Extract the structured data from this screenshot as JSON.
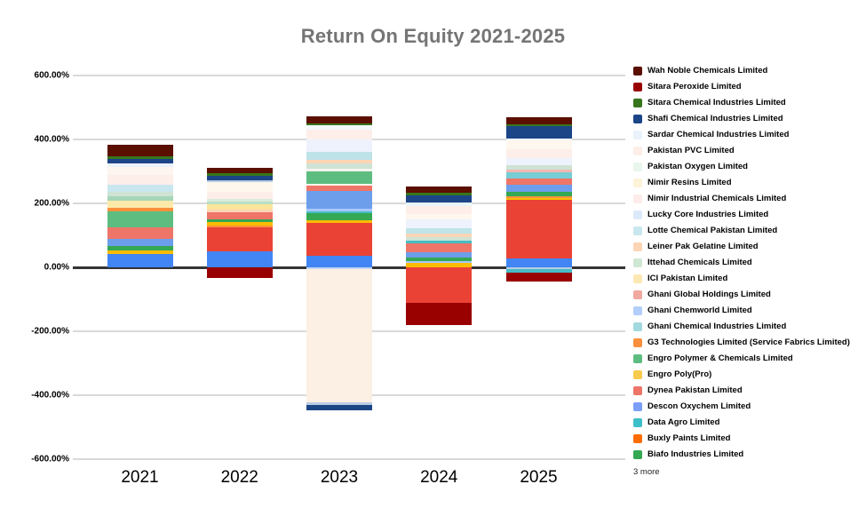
{
  "page": {
    "title": "Return On Equity 2021-2025"
  },
  "colors": {
    "background": "#ffffff",
    "title_text": "#757575",
    "gridline": "#d9d9d9",
    "zero_line": "#333333",
    "axis_text": "#000000"
  },
  "chart_data": {
    "type": "bar",
    "stacked": true,
    "title": "Return On Equity 2021-2025",
    "unit": "percent",
    "grid": true,
    "legend_position": "right",
    "categories": [
      "2021",
      "2022",
      "2023",
      "2024",
      "2025"
    ],
    "ylim": [
      -600,
      600
    ],
    "y_ticks": [
      {
        "value": 600,
        "label": "600.00%"
      },
      {
        "value": 400,
        "label": "400.00%"
      },
      {
        "value": 200,
        "label": "200.00%"
      },
      {
        "value": 0,
        "label": "0.00%"
      },
      {
        "value": -200,
        "label": "-200.00%"
      },
      {
        "value": -400,
        "label": "-400.00%"
      },
      {
        "value": -600,
        "label": "-600.00%"
      }
    ],
    "legend": [
      {
        "name": "Wah Noble Chemicals Limited",
        "color": "#5b0f00"
      },
      {
        "name": "Sitara Peroxide Limited",
        "color": "#990000"
      },
      {
        "name": "Sitara Chemical Industries Limited",
        "color": "#38761d"
      },
      {
        "name": "Shafi Chemical Industries Limited",
        "color": "#1c4587"
      },
      {
        "name": "Sardar Chemical Industries Limited",
        "color": "#eaf2fb"
      },
      {
        "name": "Pakistan PVC Limited",
        "color": "#fdeee8"
      },
      {
        "name": "Pakistan Oxygen Limited",
        "color": "#e9f6ec"
      },
      {
        "name": "Nimir Resins Limited",
        "color": "#fdf3d8"
      },
      {
        "name": "Nimir Industrial Chemicals Limited",
        "color": "#fdecea"
      },
      {
        "name": "Lucky Core Industries Limited",
        "color": "#dce9fb"
      },
      {
        "name": "Lotte Chemical Pakistan Limited",
        "color": "#c9e7ee"
      },
      {
        "name": "Leiner Pak Gelatine Limited",
        "color": "#fcd5b5"
      },
      {
        "name": "Ittehad Chemicals Limited",
        "color": "#cfe8d4"
      },
      {
        "name": "ICI Pakistan Limited",
        "color": "#fce8b2"
      },
      {
        "name": "Ghani Global Holdings Limited",
        "color": "#f0a8a0"
      },
      {
        "name": "Ghani Chemworld Limited",
        "color": "#b3cefb"
      },
      {
        "name": "Ghani Chemical Industries Limited",
        "color": "#a2d9de"
      },
      {
        "name": "G3 Technologies Limited  (Service Fabrics Limited)",
        "color": "#fa903e"
      },
      {
        "name": "Engro Polymer & Chemicals Limited",
        "color": "#5dbd80"
      },
      {
        "name": "Engro Poly(Pro)",
        "color": "#f7cb4d"
      },
      {
        "name": "Dynea Pakistan Limited",
        "color": "#ee7567"
      },
      {
        "name": "Descon Oxychem Limited",
        "color": "#7b9ff9"
      },
      {
        "name": "Data Agro Limited",
        "color": "#3dbfc9"
      },
      {
        "name": "Buxly Paints Limited",
        "color": "#ff6d01"
      },
      {
        "name": "Biafo Industries Limited",
        "color": "#34a853"
      }
    ],
    "legend_more_label": "3 more",
    "bars": [
      {
        "category": "2021",
        "positive_total_pct": 382,
        "negative_total_pct": 0,
        "segments_positive": [
          [
            "#5b0f00",
            36
          ],
          [
            "#38761d",
            7
          ],
          [
            "#1c4587",
            13
          ],
          [
            "#eaf2fb",
            11
          ],
          [
            "#fdf5ef",
            25
          ],
          [
            "#fdeeea",
            31
          ],
          [
            "#c9e7ee",
            24
          ],
          [
            "#cfe3d4",
            13
          ],
          [
            "#a5d6b8",
            14
          ],
          [
            "#fde9a9",
            23
          ],
          [
            "#fa903e",
            11
          ],
          [
            "#5dbd80",
            49
          ],
          [
            "#ee7567",
            35
          ],
          [
            "#6d9eeb",
            22
          ],
          [
            "#34a853",
            15
          ],
          [
            "#fbbc04",
            11
          ],
          [
            "#4285f4",
            42
          ]
        ],
        "segments_negative": []
      },
      {
        "category": "2022",
        "positive_total_pct": 312,
        "negative_total_pct": -33,
        "segments_positive": [
          [
            "#5b0f00",
            17
          ],
          [
            "#38761d",
            8
          ],
          [
            "#1c4587",
            15
          ],
          [
            "#b8cce4",
            6
          ],
          [
            "#fdf7ee",
            30
          ],
          [
            "#fdeeea",
            21
          ],
          [
            "#d9ecdc",
            10
          ],
          [
            "#b9dfc4",
            7
          ],
          [
            "#fce49b",
            18
          ],
          [
            "#fcd5b5",
            8
          ],
          [
            "#ee7567",
            22
          ],
          [
            "#34a853",
            8
          ],
          [
            "#fbbc04",
            11
          ],
          [
            "#fa903e",
            6
          ],
          [
            "#ea4335",
            75
          ],
          [
            "#4285f4",
            50
          ]
        ],
        "segments_negative": [
          [
            "#990000",
            33
          ]
        ]
      },
      {
        "category": "2023",
        "positive_total_pct": 472,
        "negative_total_pct": -446,
        "segments_positive": [
          [
            "#5b0f00",
            22
          ],
          [
            "#38761d",
            6
          ],
          [
            "#f3f8fd",
            14
          ],
          [
            "#fdeeea",
            31
          ],
          [
            "#eef2fc",
            39
          ],
          [
            "#bee3e9",
            25
          ],
          [
            "#fcd5b5",
            11
          ],
          [
            "#cfe3d4",
            17
          ],
          [
            "#f3f3ef",
            6
          ],
          [
            "#5dbd80",
            39
          ],
          [
            "#fdf7ee",
            6
          ],
          [
            "#ee7567",
            17
          ],
          [
            "#6d9eeb",
            56
          ],
          [
            "#a8c7fa",
            8
          ],
          [
            "#46bdc6",
            6
          ],
          [
            "#34a853",
            22
          ],
          [
            "#fbbc04",
            8
          ],
          [
            "#ea4335",
            103
          ],
          [
            "#4285f4",
            36
          ]
        ],
        "segments_negative": [
          [
            "#c3d6f0",
            6
          ],
          [
            "#fcefe3",
            417
          ],
          [
            "#b8cce4",
            8
          ],
          [
            "#1c4587",
            15
          ]
        ]
      },
      {
        "category": "2024",
        "positive_total_pct": 254,
        "negative_total_pct": -180,
        "segments_positive": [
          [
            "#5b0f00",
            22
          ],
          [
            "#38761d",
            6
          ],
          [
            "#1c4587",
            22
          ],
          [
            "#e8f7f7",
            11
          ],
          [
            "#fdeeea",
            25
          ],
          [
            "#fdf7ee",
            17
          ],
          [
            "#eef2fc",
            28
          ],
          [
            "#bee3e9",
            17
          ],
          [
            "#fcd5b5",
            11
          ],
          [
            "#cfe3d4",
            11
          ],
          [
            "#46bdc6",
            8
          ],
          [
            "#ee7567",
            28
          ],
          [
            "#6d9eeb",
            17
          ],
          [
            "#34a853",
            11
          ],
          [
            "#a8c7fa",
            6
          ],
          [
            "#fbbc04",
            14
          ]
        ],
        "segments_negative": [
          [
            "#ea4335",
            110
          ],
          [
            "#990000",
            70
          ]
        ]
      },
      {
        "category": "2025",
        "positive_total_pct": 470,
        "negative_total_pct": -45,
        "segments_positive": [
          [
            "#5b0f00",
            22
          ],
          [
            "#38761d",
            6
          ],
          [
            "#1c4587",
            39
          ],
          [
            "#f3f8fd",
            6
          ],
          [
            "#fdf7ee",
            28
          ],
          [
            "#fdeeea",
            28
          ],
          [
            "#eef2fc",
            22
          ],
          [
            "#cfe3d4",
            14
          ],
          [
            "#f5b7b1",
            8
          ],
          [
            "#76cdd4",
            19
          ],
          [
            "#ee7567",
            19
          ],
          [
            "#6d9eeb",
            22
          ],
          [
            "#34a853",
            14
          ],
          [
            "#fa903e",
            6
          ],
          [
            "#fbbc04",
            6
          ],
          [
            "#ea4335",
            183
          ],
          [
            "#4285f4",
            28
          ]
        ],
        "segments_negative": [
          [
            "#b8cce4",
            6
          ],
          [
            "#46bdc6",
            11
          ],
          [
            "#990000",
            28
          ]
        ]
      }
    ]
  }
}
